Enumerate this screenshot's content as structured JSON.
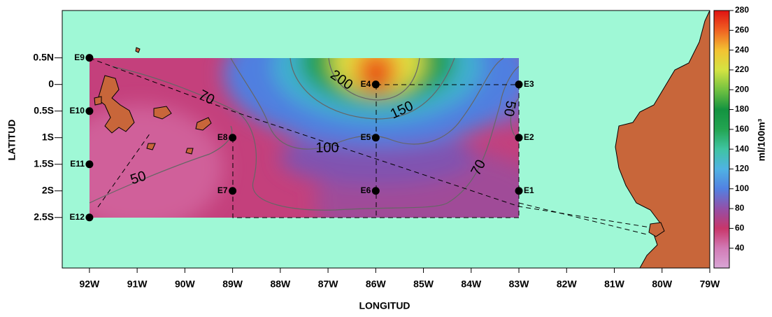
{
  "map": {
    "xlabel": "LONGITUD",
    "ylabel": "LATITUD",
    "xlim": [
      -92.57,
      -79
    ],
    "ylim": [
      -3.45,
      1.39
    ],
    "xticks": [
      {
        "value": -92,
        "label": "92W"
      },
      {
        "value": -91,
        "label": "91W"
      },
      {
        "value": -90,
        "label": "90W"
      },
      {
        "value": -89,
        "label": "89W"
      },
      {
        "value": -88,
        "label": "88W"
      },
      {
        "value": -87,
        "label": "87W"
      },
      {
        "value": -86,
        "label": "86W"
      },
      {
        "value": -85,
        "label": "85W"
      },
      {
        "value": -84,
        "label": "84W"
      },
      {
        "value": -83,
        "label": "83W"
      },
      {
        "value": -82,
        "label": "82W"
      },
      {
        "value": -81,
        "label": "81W"
      },
      {
        "value": -80,
        "label": "80W"
      },
      {
        "value": -79,
        "label": "79W"
      }
    ],
    "yticks": [
      {
        "value": 0.5,
        "label": "0.5N"
      },
      0,
      {
        "value": -0.5,
        "label": "0.5S"
      },
      {
        "value": -1,
        "label": "1S"
      },
      {
        "value": -1.5,
        "label": "1.5S"
      },
      {
        "value": -2,
        "label": "2S"
      },
      {
        "value": -2.5,
        "label": "2.5S"
      }
    ],
    "stations": [
      {
        "name": "E1",
        "lon": -83,
        "lat": -2
      },
      {
        "name": "E2",
        "lon": -83,
        "lat": -1
      },
      {
        "name": "E3",
        "lon": -83,
        "lat": 0
      },
      {
        "name": "E4",
        "lon": -86,
        "lat": 0
      },
      {
        "name": "E5",
        "lon": -86,
        "lat": -1
      },
      {
        "name": "E6",
        "lon": -86,
        "lat": -2
      },
      {
        "name": "E7",
        "lon": -89,
        "lat": -2
      },
      {
        "name": "E8",
        "lon": -89,
        "lat": -1
      },
      {
        "name": "E9",
        "lon": -92,
        "lat": 0.5
      },
      {
        "name": "E10",
        "lon": -92,
        "lat": -0.5
      },
      {
        "name": "E11",
        "lon": -92,
        "lat": -1.5
      },
      {
        "name": "E12",
        "lon": -92,
        "lat": -2.5
      }
    ],
    "contour_labels": [
      70,
      50,
      200,
      150,
      100,
      50,
      70
    ],
    "colorbar": {
      "label": "ml/100m³",
      "lim": [
        20,
        280
      ],
      "ticks": [
        40,
        60,
        80,
        100,
        120,
        140,
        160,
        180,
        200,
        220,
        240,
        260,
        280
      ]
    }
  }
}
